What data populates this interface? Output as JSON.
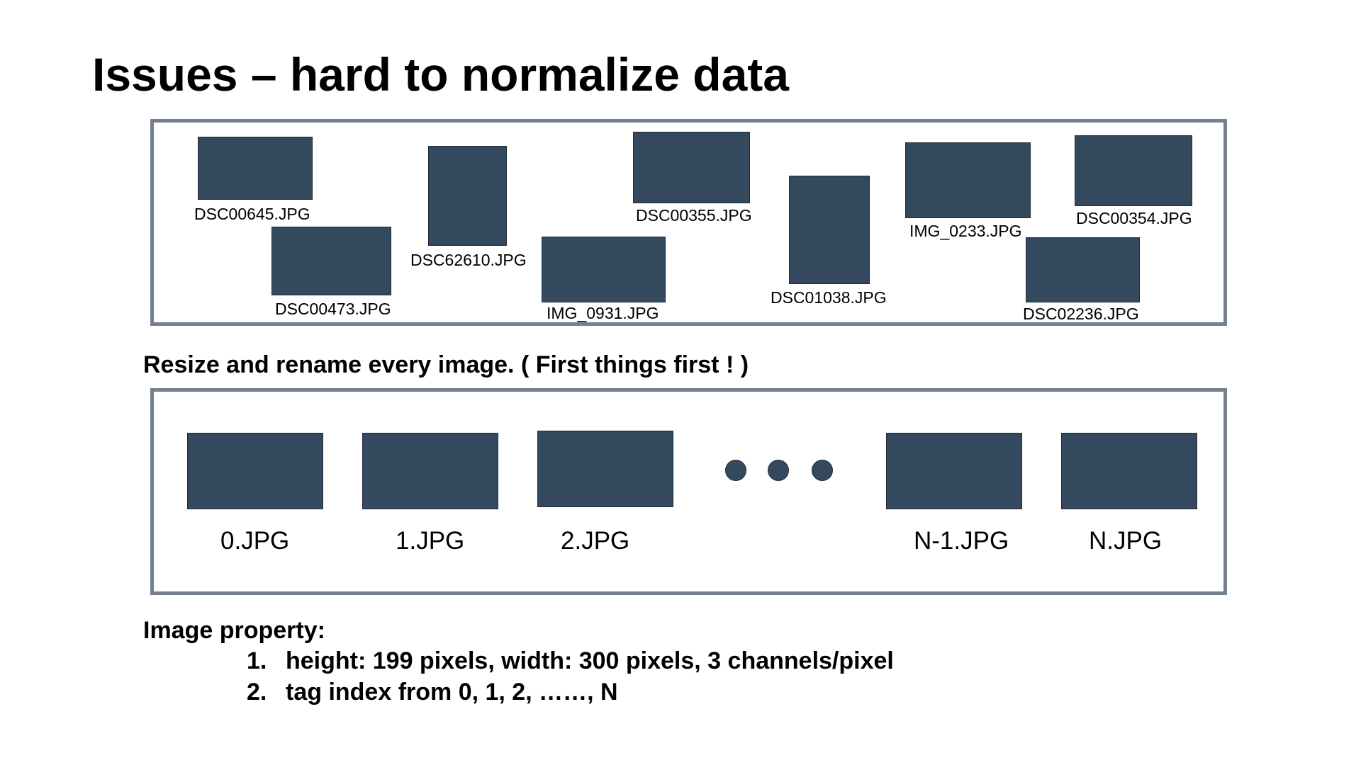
{
  "title": "Issues – hard to normalize data",
  "raw_files": [
    "DSC00645.JPG",
    "DSC00473.JPG",
    "DSC62610.JPG",
    "IMG_0931.JPG",
    "DSC00355.JPG",
    "DSC01038.JPG",
    "IMG_0233.JPG",
    "DSC00354.JPG",
    "DSC02236.JPG"
  ],
  "step_text": "Resize and rename every image. ( First things first !  )",
  "renamed_files": [
    "0.JPG",
    "1.JPG",
    "2.JPG",
    "N-1.JPG",
    "N.JPG"
  ],
  "property": {
    "heading": "Image property:",
    "items": [
      {
        "num": "1.",
        "text": "height: 199 pixels, width: 300 pixels, 3 channels/pixel"
      },
      {
        "num": "2.",
        "text": "tag index from 0, 1, 2, ……, N"
      }
    ]
  },
  "colors": {
    "thumbnail": "#34495e",
    "panel_border": "#75808f"
  }
}
